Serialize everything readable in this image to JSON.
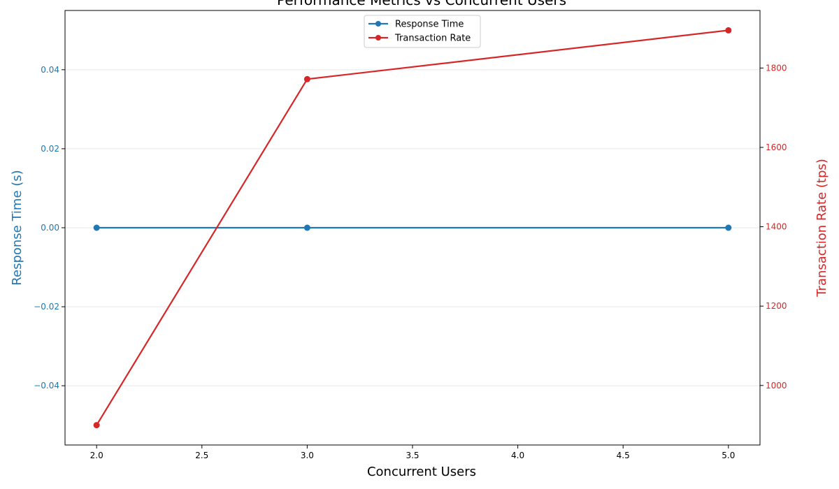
{
  "chart_data": {
    "type": "line",
    "title": "Performance Metrics vs Concurrent Users",
    "xlabel": "Concurrent Users",
    "ylabel_left": "Response Time (s)",
    "ylabel_right": "Transaction Rate (tps)",
    "x": [
      2,
      3,
      5
    ],
    "xlim": [
      1.85,
      5.15
    ],
    "x_ticks": [
      "2.0",
      "2.5",
      "3.0",
      "3.5",
      "4.0",
      "4.5",
      "5.0"
    ],
    "y_left_lim": [
      -0.055,
      0.055
    ],
    "y_left_ticks": [
      "−0.04",
      "−0.02",
      "0.00",
      "0.02",
      "0.04"
    ],
    "y_right_lim": [
      850,
      1945
    ],
    "y_right_ticks": [
      "1000",
      "1200",
      "1400",
      "1600",
      "1800"
    ],
    "grid": "horizontal",
    "legend_position": "top-center",
    "series": [
      {
        "name": "Response Time",
        "axis": "left",
        "color": "#1f77b4",
        "values": [
          0.0,
          0.0,
          0.0
        ]
      },
      {
        "name": "Transaction Rate",
        "axis": "right",
        "color": "#d62728",
        "values": [
          900,
          1772,
          1895
        ]
      }
    ]
  }
}
